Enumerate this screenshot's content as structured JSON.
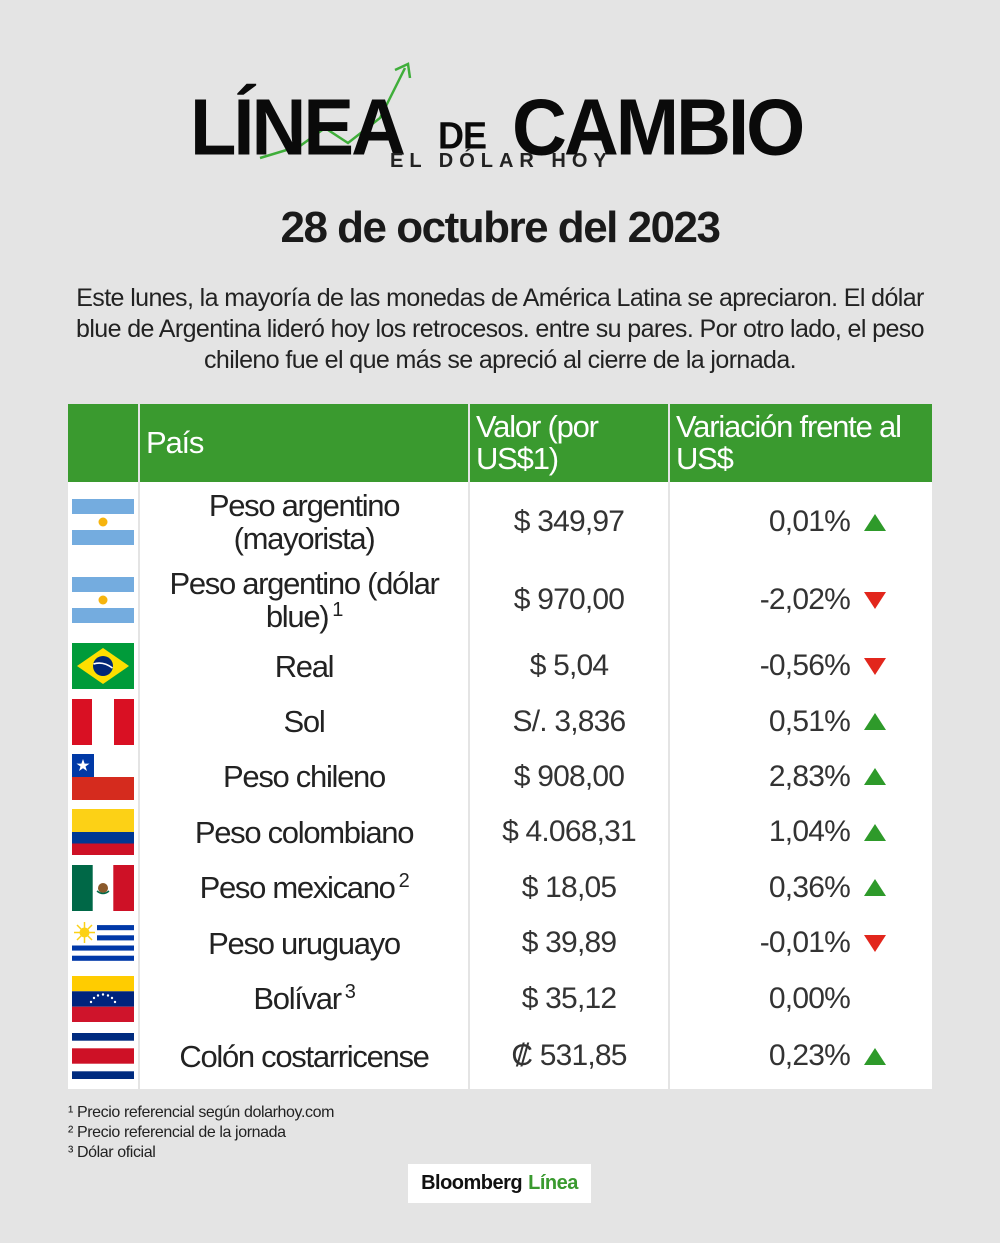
{
  "header": {
    "logo_word_1": "LÍNEA",
    "logo_word_2": "DE",
    "logo_word_3": "CAMBIO",
    "logo_subtitle": "EL DÓLAR HOY",
    "date": "28 de octubre del 2023",
    "intro": "Este lunes, la mayoría de las monedas de América Latina se apreciaron. El dólar blue de Argentina lideró hoy los retrocesos. entre su pares. Por otro lado, el peso chileno fue el que más se apreció al cierre de la jornada."
  },
  "table": {
    "headers": {
      "country": "País",
      "value": "Valor (por US$1)",
      "variation": "Variación frente al US$"
    },
    "rows": [
      {
        "flag": "argentina-flag",
        "country": "Peso argentino (mayorista)",
        "sup": "",
        "value": "$ 349,97",
        "variation": "0,01%",
        "direction": "up"
      },
      {
        "flag": "argentina-flag",
        "country": "Peso argentino (dólar blue)",
        "sup": "1",
        "value": "$ 970,00",
        "variation": "-2,02%",
        "direction": "down"
      },
      {
        "flag": "brazil-flag",
        "country": "Real",
        "sup": "",
        "value": "$ 5,04",
        "variation": "-0,56%",
        "direction": "down"
      },
      {
        "flag": "peru-flag",
        "country": "Sol",
        "sup": "",
        "value": "S/. 3,836",
        "variation": "0,51%",
        "direction": "up"
      },
      {
        "flag": "chile-flag",
        "country": "Peso chileno",
        "sup": "",
        "value": "$ 908,00",
        "variation": "2,83%",
        "direction": "up"
      },
      {
        "flag": "colombia-flag",
        "country": "Peso colombiano",
        "sup": "",
        "value": "$ 4.068,31",
        "variation": "1,04%",
        "direction": "up"
      },
      {
        "flag": "mexico-flag",
        "country": "Peso mexicano",
        "sup": "2",
        "value": "$ 18,05",
        "variation": "0,36%",
        "direction": "up"
      },
      {
        "flag": "uruguay-flag",
        "country": "Peso uruguayo",
        "sup": "",
        "value": "$ 39,89",
        "variation": "-0,01%",
        "direction": "down"
      },
      {
        "flag": "venezuela-flag",
        "country": "Bolívar",
        "sup": "3",
        "value": "$ 35,12",
        "variation": "0,00%",
        "direction": "none"
      },
      {
        "flag": "costa-rica-flag",
        "country": "Colón costarricense",
        "sup": "",
        "value": "₡ 531,85",
        "variation": "0,23%",
        "direction": "up"
      }
    ]
  },
  "footnotes": [
    "¹ Precio referencial según dolarhoy.com",
    "² Precio referencial de la jornada",
    "³ Dólar oficial"
  ],
  "brand": {
    "name": "Bloomberg",
    "accent": "Línea"
  },
  "colors": {
    "header_green": "#3a9a2f",
    "up": "#2e9a2a",
    "down": "#e2261c"
  }
}
